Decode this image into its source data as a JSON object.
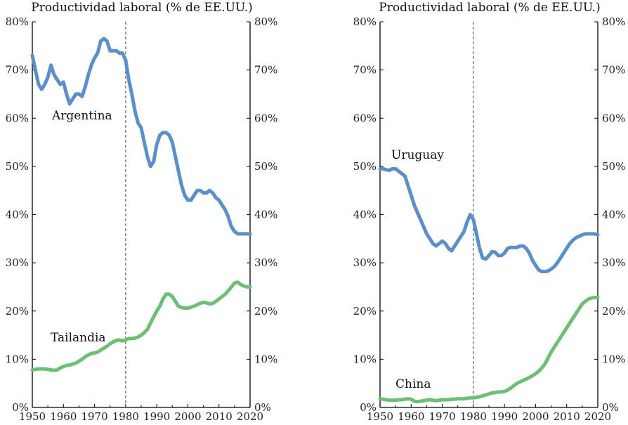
{
  "chart_data": [
    {
      "type": "line",
      "title": "Productividad laboral (% de EE.UU.)",
      "xlim": [
        1950,
        2020
      ],
      "ylim": [
        0,
        80
      ],
      "x_ticks": [
        "1950",
        "1960",
        "1970",
        "1980",
        "1990",
        "2000",
        "2010",
        "2020"
      ],
      "y_ticks": [
        "0%",
        "10%",
        "20%",
        "30%",
        "40%",
        "50%",
        "60%",
        "70%",
        "80%"
      ],
      "reference_x": 1980,
      "series": [
        {
          "name": "Argentina",
          "color": "#5b8fc9",
          "x": [
            1950,
            1951,
            1952,
            1953,
            1954,
            1955,
            1956,
            1957,
            1958,
            1959,
            1960,
            1961,
            1962,
            1963,
            1964,
            1965,
            1966,
            1967,
            1968,
            1969,
            1970,
            1971,
            1972,
            1973,
            1974,
            1975,
            1976,
            1977,
            1978,
            1979,
            1980,
            1981,
            1982,
            1983,
            1984,
            1985,
            1986,
            1987,
            1988,
            1989,
            1990,
            1991,
            1992,
            1993,
            1994,
            1995,
            1996,
            1997,
            1998,
            1999,
            2000,
            2001,
            2002,
            2003,
            2004,
            2005,
            2006,
            2007,
            2008,
            2009,
            2010,
            2011,
            2012,
            2013,
            2014,
            2015,
            2016,
            2017,
            2018,
            2019,
            2020
          ],
          "y": [
            73,
            70,
            67,
            66,
            67,
            68.5,
            71,
            69,
            68,
            67,
            67.5,
            65,
            63,
            64,
            65,
            65,
            64.5,
            66.5,
            69,
            71,
            72.5,
            73.5,
            76,
            76.5,
            76,
            74,
            74,
            74,
            73.5,
            73.5,
            72,
            68,
            65,
            61.5,
            59,
            58,
            55,
            52,
            50,
            51,
            54.5,
            56.5,
            57,
            57,
            56.5,
            55,
            52,
            49,
            46,
            44,
            43,
            43,
            44,
            45,
            45,
            44.5,
            44.5,
            45,
            44.5,
            43.5,
            43,
            42,
            41,
            39.5,
            37.5,
            36.5,
            36,
            36,
            36,
            36,
            36
          ]
        },
        {
          "name": "Tailandia",
          "color": "#6dbf73",
          "x": [
            1950,
            1951,
            1952,
            1953,
            1954,
            1955,
            1956,
            1957,
            1958,
            1959,
            1960,
            1961,
            1962,
            1963,
            1964,
            1965,
            1966,
            1967,
            1968,
            1969,
            1970,
            1971,
            1972,
            1973,
            1974,
            1975,
            1976,
            1977,
            1978,
            1979,
            1980,
            1981,
            1982,
            1983,
            1984,
            1985,
            1986,
            1987,
            1988,
            1989,
            1990,
            1991,
            1992,
            1993,
            1994,
            1995,
            1996,
            1997,
            1998,
            1999,
            2000,
            2001,
            2002,
            2003,
            2004,
            2005,
            2006,
            2007,
            2008,
            2009,
            2010,
            2011,
            2012,
            2013,
            2014,
            2015,
            2016,
            2017,
            2018,
            2019,
            2020
          ],
          "y": [
            7.8,
            7.9,
            8,
            8,
            8,
            7.9,
            7.8,
            7.7,
            7.8,
            8.2,
            8.5,
            8.7,
            8.8,
            9,
            9.2,
            9.6,
            10,
            10.5,
            10.9,
            11.2,
            11.3,
            11.5,
            11.9,
            12.3,
            12.7,
            13.2,
            13.6,
            13.9,
            14,
            13.8,
            14,
            14.3,
            14.3,
            14.4,
            14.6,
            15,
            15.5,
            16.2,
            17.5,
            18.8,
            20,
            21,
            22.5,
            23.5,
            23.5,
            23,
            22,
            21,
            20.7,
            20.6,
            20.6,
            20.8,
            21,
            21.3,
            21.6,
            21.8,
            21.7,
            21.5,
            21.6,
            22,
            22.5,
            23,
            23.5,
            24.2,
            25,
            25.8,
            26,
            25.5,
            25.2,
            25,
            25
          ]
        }
      ],
      "annotations": [
        "Argentina",
        "Tailandia"
      ]
    },
    {
      "type": "line",
      "title": "Productividad laboral (% de EE.UU.)",
      "xlim": [
        1950,
        2020
      ],
      "ylim": [
        0,
        80
      ],
      "x_ticks": [
        "1950",
        "1960",
        "1970",
        "1980",
        "1990",
        "2000",
        "2010",
        "2020"
      ],
      "y_ticks": [
        "0%",
        "10%",
        "20%",
        "30%",
        "40%",
        "50%",
        "60%",
        "70%",
        "80%"
      ],
      "reference_x": 1980,
      "series": [
        {
          "name": "Uruguay",
          "color": "#5b8fc9",
          "x": [
            1950,
            1951,
            1952,
            1953,
            1954,
            1955,
            1956,
            1957,
            1958,
            1959,
            1960,
            1961,
            1962,
            1963,
            1964,
            1965,
            1966,
            1967,
            1968,
            1969,
            1970,
            1971,
            1972,
            1973,
            1974,
            1975,
            1976,
            1977,
            1978,
            1979,
            1980,
            1981,
            1982,
            1983,
            1984,
            1985,
            1986,
            1987,
            1988,
            1989,
            1990,
            1991,
            1992,
            1993,
            1994,
            1995,
            1996,
            1997,
            1998,
            1999,
            2000,
            2001,
            2002,
            2003,
            2004,
            2005,
            2006,
            2007,
            2008,
            2009,
            2010,
            2011,
            2012,
            2013,
            2014,
            2015,
            2016,
            2017,
            2018,
            2019,
            2020
          ],
          "y": [
            49.5,
            49.5,
            49.3,
            49.2,
            49.5,
            49.5,
            49,
            48.5,
            48,
            46,
            44,
            42,
            40.5,
            39,
            37.5,
            36,
            35,
            34,
            33.5,
            34,
            34.5,
            34,
            33,
            32.5,
            33.5,
            34.5,
            35.5,
            36.5,
            38.5,
            40,
            39,
            36,
            33,
            31,
            30.8,
            31.5,
            32.3,
            32.2,
            31.5,
            31.5,
            32,
            33,
            33.2,
            33.2,
            33.2,
            33.5,
            33.5,
            33,
            32,
            30.5,
            29.5,
            28.5,
            28.2,
            28.2,
            28.3,
            28.7,
            29.2,
            30,
            31,
            32,
            33,
            34,
            34.7,
            35.2,
            35.5,
            35.8,
            36,
            36,
            36,
            36,
            35.8
          ]
        },
        {
          "name": "China",
          "color": "#6dbf73",
          "x": [
            1950,
            1951,
            1952,
            1953,
            1954,
            1955,
            1956,
            1957,
            1958,
            1959,
            1960,
            1961,
            1962,
            1963,
            1964,
            1965,
            1966,
            1967,
            1968,
            1969,
            1970,
            1971,
            1972,
            1973,
            1974,
            1975,
            1976,
            1977,
            1978,
            1979,
            1980,
            1981,
            1982,
            1983,
            1984,
            1985,
            1986,
            1987,
            1988,
            1989,
            1990,
            1991,
            1992,
            1993,
            1994,
            1995,
            1996,
            1997,
            1998,
            1999,
            2000,
            2001,
            2002,
            2003,
            2004,
            2005,
            2006,
            2007,
            2008,
            2009,
            2010,
            2011,
            2012,
            2013,
            2014,
            2015,
            2016,
            2017,
            2018,
            2019,
            2020
          ],
          "y": [
            1.8,
            1.7,
            1.6,
            1.5,
            1.5,
            1.5,
            1.6,
            1.6,
            1.7,
            1.8,
            1.7,
            1.3,
            1.2,
            1.3,
            1.4,
            1.5,
            1.6,
            1.5,
            1.4,
            1.5,
            1.6,
            1.6,
            1.6,
            1.7,
            1.7,
            1.8,
            1.8,
            1.8,
            1.9,
            2,
            2,
            2.1,
            2.2,
            2.4,
            2.6,
            2.8,
            3,
            3.1,
            3.2,
            3.2,
            3.3,
            3.6,
            4,
            4.5,
            5,
            5.3,
            5.6,
            5.9,
            6.2,
            6.6,
            7,
            7.5,
            8.2,
            9,
            10.2,
            11.5,
            12.5,
            13.5,
            14.5,
            15.5,
            16.5,
            17.5,
            18.5,
            19.5,
            20.5,
            21.5,
            22,
            22.5,
            22.7,
            22.8,
            22.8
          ]
        }
      ],
      "annotations": [
        "Uruguay",
        "China"
      ]
    }
  ]
}
